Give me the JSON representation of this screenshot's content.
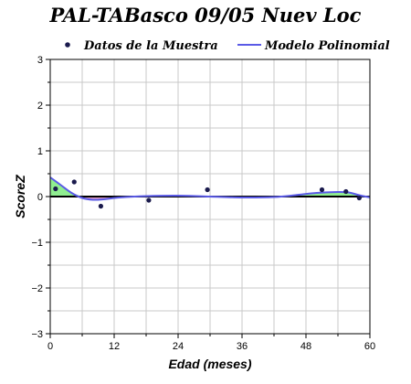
{
  "chart_data": {
    "type": "scatter",
    "title": "PAL-TABasco 09/05 Nuev Loc",
    "xlabel": "Edad (meses)",
    "ylabel": "ScoreZ",
    "xlim": [
      0,
      60
    ],
    "ylim": [
      -3,
      3
    ],
    "x_ticks": [
      0,
      12,
      24,
      36,
      48,
      60
    ],
    "y_ticks": [
      -3,
      -2,
      -1,
      0,
      1,
      2,
      3
    ],
    "y_tick_labels": [
      "−3",
      "−2",
      "−1",
      "0",
      "1",
      "2",
      "3"
    ],
    "grid": true,
    "legend_position": "top",
    "series": [
      {
        "name": "Datos de la Muestra",
        "kind": "points",
        "color": "#1a1a4d",
        "points": [
          {
            "x": 1,
            "y": 0.17
          },
          {
            "x": 4.5,
            "y": 0.32
          },
          {
            "x": 9.5,
            "y": -0.21
          },
          {
            "x": 18.5,
            "y": -0.08
          },
          {
            "x": 29.5,
            "y": 0.15
          },
          {
            "x": 51,
            "y": 0.15
          },
          {
            "x": 55.5,
            "y": 0.11
          },
          {
            "x": 58,
            "y": -0.03
          }
        ]
      },
      {
        "name": "Modelo Polinomial",
        "kind": "curve",
        "color": "#5a5ae6",
        "points": [
          {
            "x": 0,
            "y": 0.42
          },
          {
            "x": 2,
            "y": 0.25
          },
          {
            "x": 4,
            "y": 0.08
          },
          {
            "x": 6,
            "y": -0.03
          },
          {
            "x": 8,
            "y": -0.07
          },
          {
            "x": 10,
            "y": -0.06
          },
          {
            "x": 13,
            "y": -0.02
          },
          {
            "x": 18,
            "y": 0.01
          },
          {
            "x": 24,
            "y": 0.02
          },
          {
            "x": 30,
            "y": 0.0
          },
          {
            "x": 36,
            "y": -0.02
          },
          {
            "x": 42,
            "y": -0.01
          },
          {
            "x": 46,
            "y": 0.03
          },
          {
            "x": 50,
            "y": 0.08
          },
          {
            "x": 54,
            "y": 0.1
          },
          {
            "x": 56,
            "y": 0.09
          },
          {
            "x": 58,
            "y": 0.03
          },
          {
            "x": 60,
            "y": -0.02
          }
        ]
      }
    ],
    "fill_above_color": "#90ee90",
    "fill_below_color": "#e8a0c8"
  }
}
